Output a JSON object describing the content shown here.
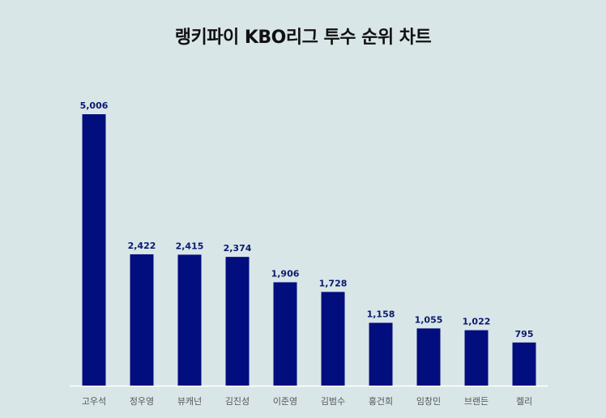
{
  "chart_data": {
    "type": "bar",
    "title": "랭키파이 KBO리그 투수 순위 차트",
    "categories": [
      "고우석",
      "정우영",
      "뷰캐넌",
      "김진성",
      "이준영",
      "김범수",
      "홍건희",
      "임창민",
      "브랜든",
      "켈리"
    ],
    "values": [
      5006,
      2422,
      2415,
      2374,
      1906,
      1728,
      1158,
      1055,
      1022,
      795
    ],
    "data_labels": [
      "5,006",
      "2,422",
      "2,415",
      "2,374",
      "1,906",
      "1,728",
      "1,158",
      "1,055",
      "1,022",
      "795"
    ],
    "xlabel": "",
    "ylabel": "",
    "ylim": [
      0,
      5006
    ],
    "grid": false,
    "legend": "none",
    "colors": {
      "bar": "#020d7e",
      "data_label": "#0a1a6e",
      "tick_label": "#555555",
      "axis": "#ffffff",
      "background": "#d9e6e8"
    }
  }
}
